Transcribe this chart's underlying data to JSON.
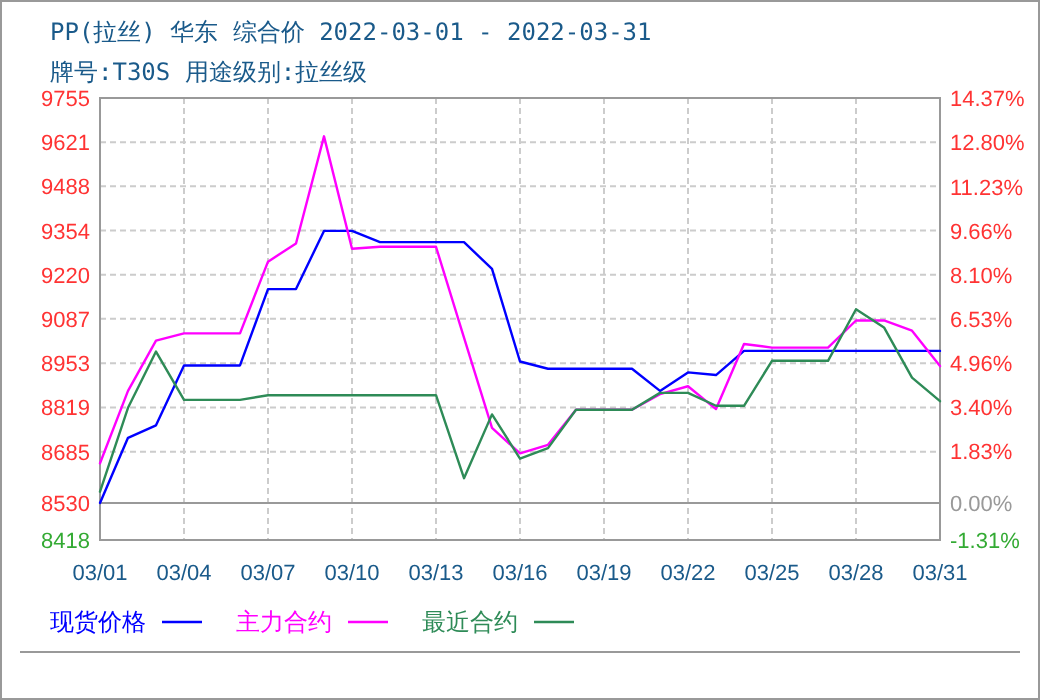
{
  "chart_data": {
    "type": "line",
    "title": "PP(拉丝) 华东 综合价 2022-03-01 - 2022-03-31",
    "subtitle": "牌号:T30S 用途级别:拉丝级",
    "categories": [
      "03/01",
      null,
      null,
      "03/04",
      null,
      null,
      "03/07",
      null,
      null,
      "03/10",
      null,
      null,
      "03/13",
      null,
      null,
      "03/16",
      null,
      null,
      "03/19",
      null,
      null,
      "03/22",
      null,
      null,
      "03/25",
      null,
      null,
      "03/28",
      null,
      null,
      "03/31"
    ],
    "series": [
      {
        "name": "现货价格",
        "color": "#0000ff",
        "values": [
          8530,
          8727,
          8765,
          8946,
          8946,
          8946,
          9177,
          9177,
          9353,
          9353,
          9319,
          9319,
          9319,
          9319,
          9238,
          8958,
          8936,
          8936,
          8936,
          8936,
          8869,
          8925,
          8917,
          8990,
          8990,
          8990,
          8990,
          8990,
          8990,
          8990,
          8990
        ]
      },
      {
        "name": "主力合约",
        "color": "#ff00ff",
        "values": [
          8650,
          8869,
          9021,
          9043,
          9043,
          9043,
          9260,
          9315,
          9639,
          9299,
          9305,
          9305,
          9305,
          9030,
          8757,
          8680,
          8706,
          8812,
          8812,
          8812,
          8859,
          8883,
          8814,
          9011,
          9000,
          9000,
          9000,
          9082,
          9082,
          9051,
          8944
        ]
      },
      {
        "name": "最近合约",
        "color": "#2e8b57",
        "values": [
          8564,
          8818,
          8988,
          8842,
          8842,
          8842,
          8856,
          8856,
          8856,
          8856,
          8856,
          8856,
          8856,
          8605,
          8798,
          8664,
          8696,
          8812,
          8812,
          8812,
          8863,
          8863,
          8824,
          8824,
          8960,
          8960,
          8960,
          9116,
          9061,
          8909,
          8838
        ]
      }
    ],
    "ylim": [
      8418,
      9755
    ],
    "yticks": [
      8418,
      8530,
      8685,
      8819,
      8953,
      9087,
      9220,
      9354,
      9488,
      9621,
      9755
    ],
    "y2lim": [
      -1.31,
      14.37
    ],
    "y2ticks": [
      {
        "value": -1.31,
        "label": "-1.31%"
      },
      {
        "value": 0,
        "label": "0.00%"
      },
      {
        "value": 1.83,
        "label": "1.83%"
      },
      {
        "value": 3.4,
        "label": "3.40%"
      },
      {
        "value": 4.96,
        "label": "4.96%"
      },
      {
        "value": 6.53,
        "label": "6.53%"
      },
      {
        "value": 8.1,
        "label": "8.10%"
      },
      {
        "value": 9.66,
        "label": "9.66%"
      },
      {
        "value": 11.23,
        "label": "11.23%"
      },
      {
        "value": 12.8,
        "label": "12.80%"
      },
      {
        "value": 14.37,
        "label": "14.37%"
      }
    ],
    "ref_lines": [
      {
        "axis": "y",
        "value": 8530,
        "color": "#999999"
      }
    ],
    "grid": true,
    "legend": "bottom",
    "line_style": "solid",
    "marker": "none"
  }
}
